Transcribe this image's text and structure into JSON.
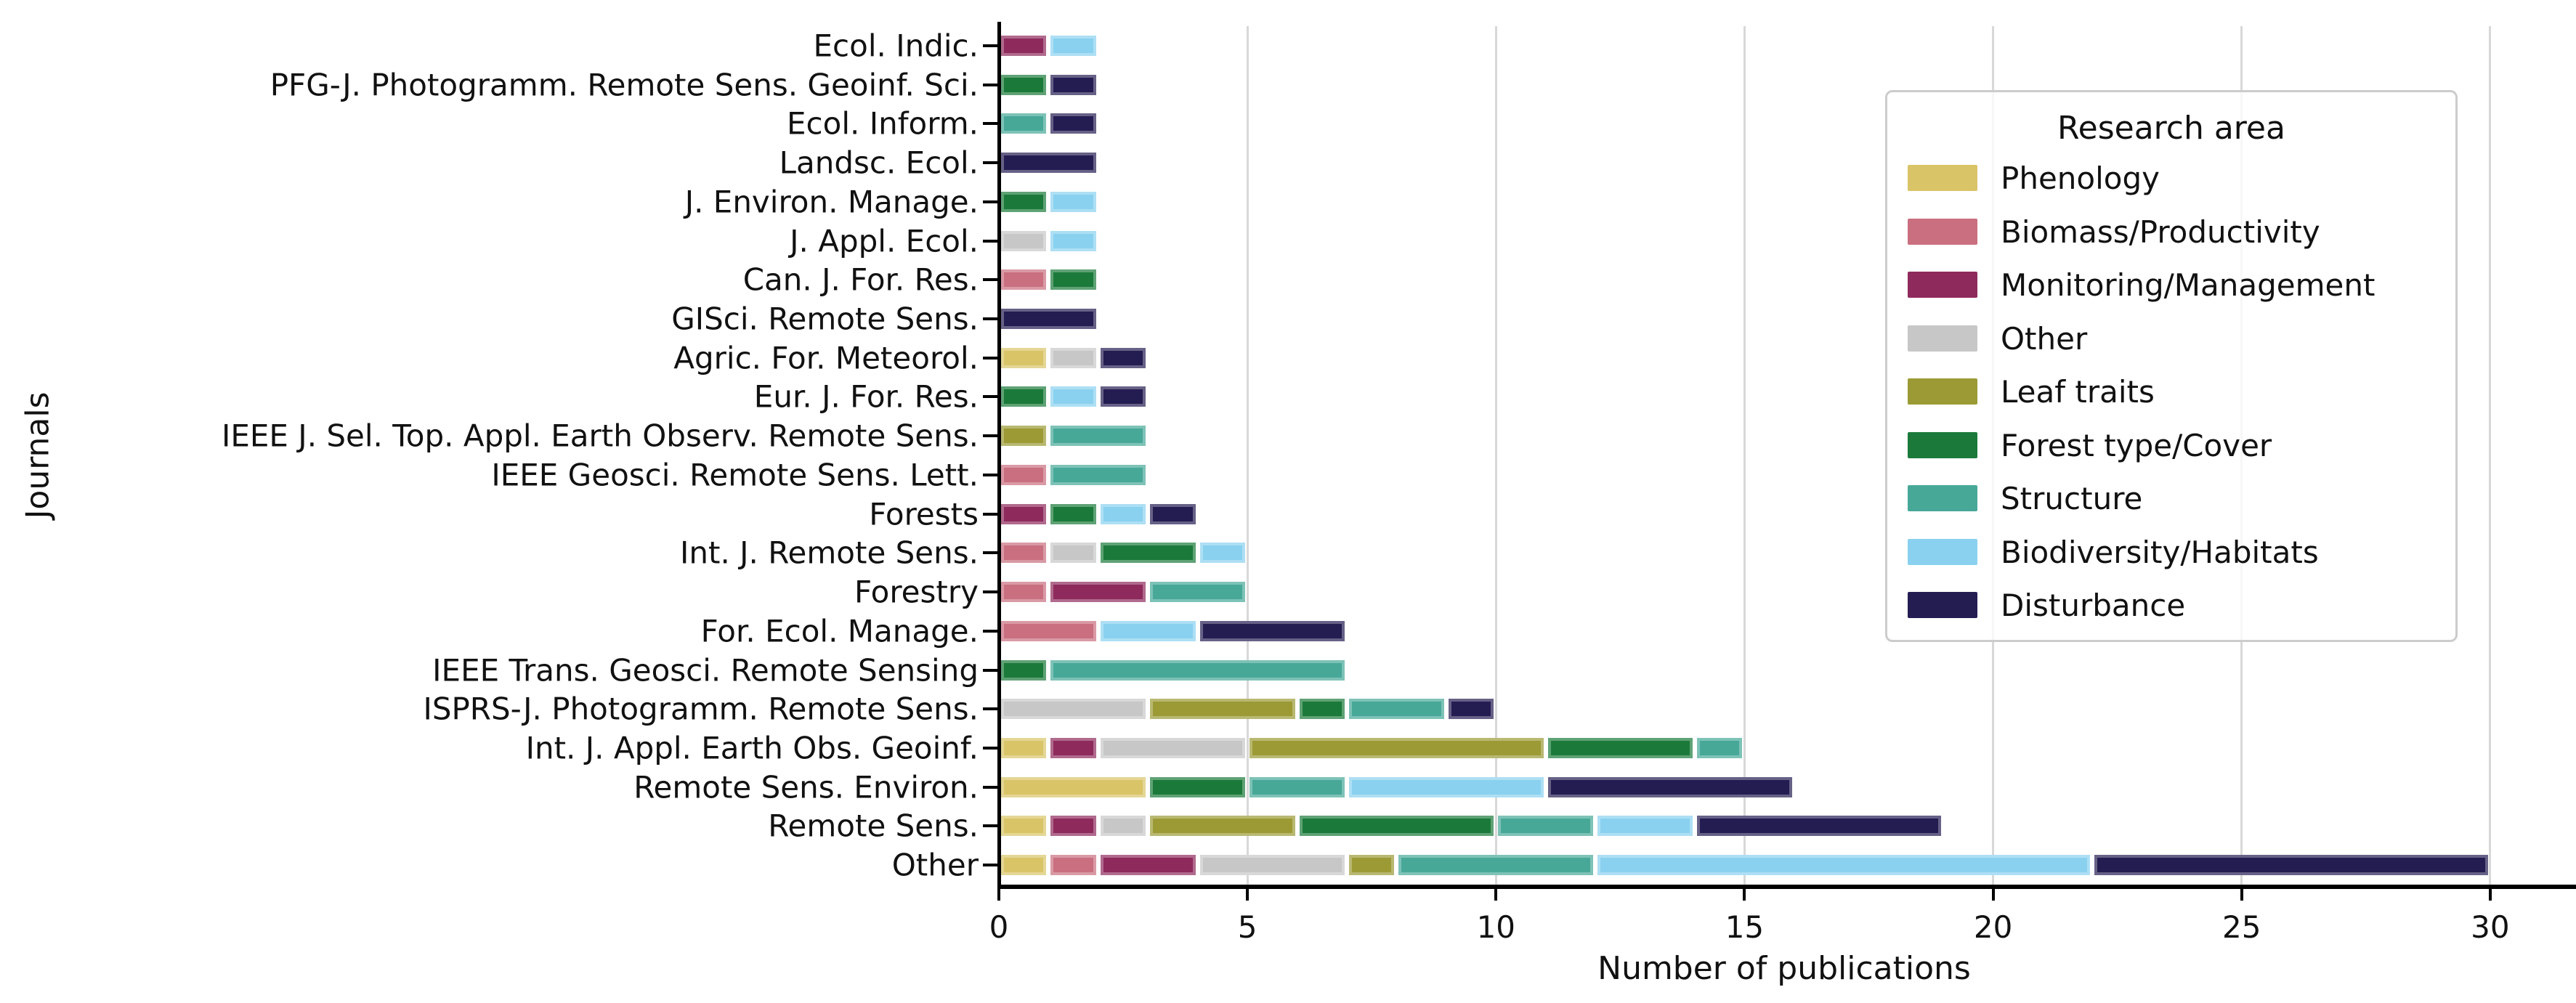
{
  "figure": {
    "xlabel": "Number of publications",
    "ylabel": "Journals",
    "background": "#ffffff"
  },
  "axis": {
    "x_tick_labels": [
      "0",
      "5",
      "10",
      "15",
      "20",
      "25",
      "30"
    ],
    "x_tick_values": [
      0,
      5,
      10,
      15,
      20,
      25,
      30
    ],
    "grid_color": "#d8d8d8",
    "spine_color": "#000000"
  },
  "legend": {
    "title": "Research area"
  },
  "chart_data": {
    "type": "bar",
    "orientation": "horizontal",
    "stacked": true,
    "title": "",
    "xlabel": "Number of publications",
    "ylabel": "Journals",
    "xlim": [
      0,
      30
    ],
    "x_ticks": [
      0,
      5,
      10,
      15,
      20,
      25,
      30
    ],
    "grid": "vertical",
    "legend_title": "Research area",
    "legend_position": "upper right",
    "categories": [
      "Ecol. Indic.",
      "PFG-J. Photogramm. Remote Sens. Geoinf. Sci.",
      "Ecol. Inform.",
      "Landsc. Ecol.",
      "J. Environ. Manage.",
      "J. Appl. Ecol.",
      "Can. J. For. Res.",
      "GISci. Remote Sens.",
      "Agric. For. Meteorol.",
      "Eur. J. For. Res.",
      "IEEE J. Sel. Top. Appl. Earth Observ. Remote Sens.",
      "IEEE Geosci. Remote Sens. Lett.",
      "Forests",
      "Int. J. Remote Sens.",
      "Forestry",
      "For. Ecol. Manage.",
      "IEEE Trans. Geosci. Remote Sensing",
      "ISPRS-J. Photogramm. Remote Sens.",
      "Int. J. Appl. Earth Obs. Geoinf.",
      "Remote Sens. Environ.",
      "Remote Sens.",
      "Other"
    ],
    "series": [
      {
        "name": "Phenology",
        "color": "#d9c467",
        "values": [
          0,
          0,
          0,
          0,
          0,
          0,
          0,
          0,
          1,
          0,
          0,
          0,
          0,
          0,
          0,
          0,
          0,
          0,
          1,
          3,
          1,
          1
        ]
      },
      {
        "name": "Biomass/Productivity",
        "color": "#c96f7f",
        "values": [
          0,
          0,
          0,
          0,
          0,
          0,
          1,
          0,
          0,
          0,
          0,
          1,
          0,
          1,
          1,
          2,
          0,
          0,
          0,
          0,
          0,
          1
        ]
      },
      {
        "name": "Monitoring/Management",
        "color": "#8e2a5c",
        "values": [
          1,
          0,
          0,
          0,
          0,
          0,
          0,
          0,
          0,
          0,
          0,
          0,
          1,
          0,
          2,
          0,
          0,
          0,
          1,
          0,
          1,
          2
        ]
      },
      {
        "name": "Other",
        "color": "#c7c7c7",
        "values": [
          0,
          0,
          0,
          0,
          0,
          1,
          0,
          0,
          1,
          0,
          0,
          0,
          0,
          1,
          0,
          0,
          0,
          3,
          3,
          0,
          1,
          3
        ]
      },
      {
        "name": "Leaf traits",
        "color": "#9b9a35",
        "values": [
          0,
          0,
          0,
          0,
          0,
          0,
          0,
          0,
          0,
          0,
          1,
          0,
          0,
          0,
          0,
          0,
          0,
          3,
          6,
          0,
          3,
          1
        ]
      },
      {
        "name": "Forest type/Cover",
        "color": "#1b7a3a",
        "values": [
          0,
          1,
          0,
          0,
          1,
          0,
          1,
          0,
          0,
          1,
          0,
          0,
          1,
          2,
          0,
          0,
          1,
          1,
          3,
          2,
          4,
          0
        ]
      },
      {
        "name": "Structure",
        "color": "#47a898",
        "values": [
          0,
          0,
          1,
          0,
          0,
          0,
          0,
          0,
          0,
          0,
          2,
          2,
          0,
          0,
          2,
          0,
          6,
          2,
          1,
          2,
          2,
          4
        ]
      },
      {
        "name": "Biodiversity/Habitats",
        "color": "#8ad1ef",
        "values": [
          1,
          0,
          0,
          0,
          1,
          1,
          0,
          0,
          0,
          1,
          0,
          0,
          1,
          1,
          0,
          2,
          0,
          0,
          0,
          4,
          2,
          10
        ]
      },
      {
        "name": "Disturbance",
        "color": "#241d52",
        "values": [
          0,
          1,
          1,
          2,
          0,
          0,
          0,
          2,
          1,
          1,
          0,
          0,
          1,
          0,
          0,
          3,
          0,
          1,
          0,
          5,
          5,
          8
        ]
      }
    ]
  }
}
